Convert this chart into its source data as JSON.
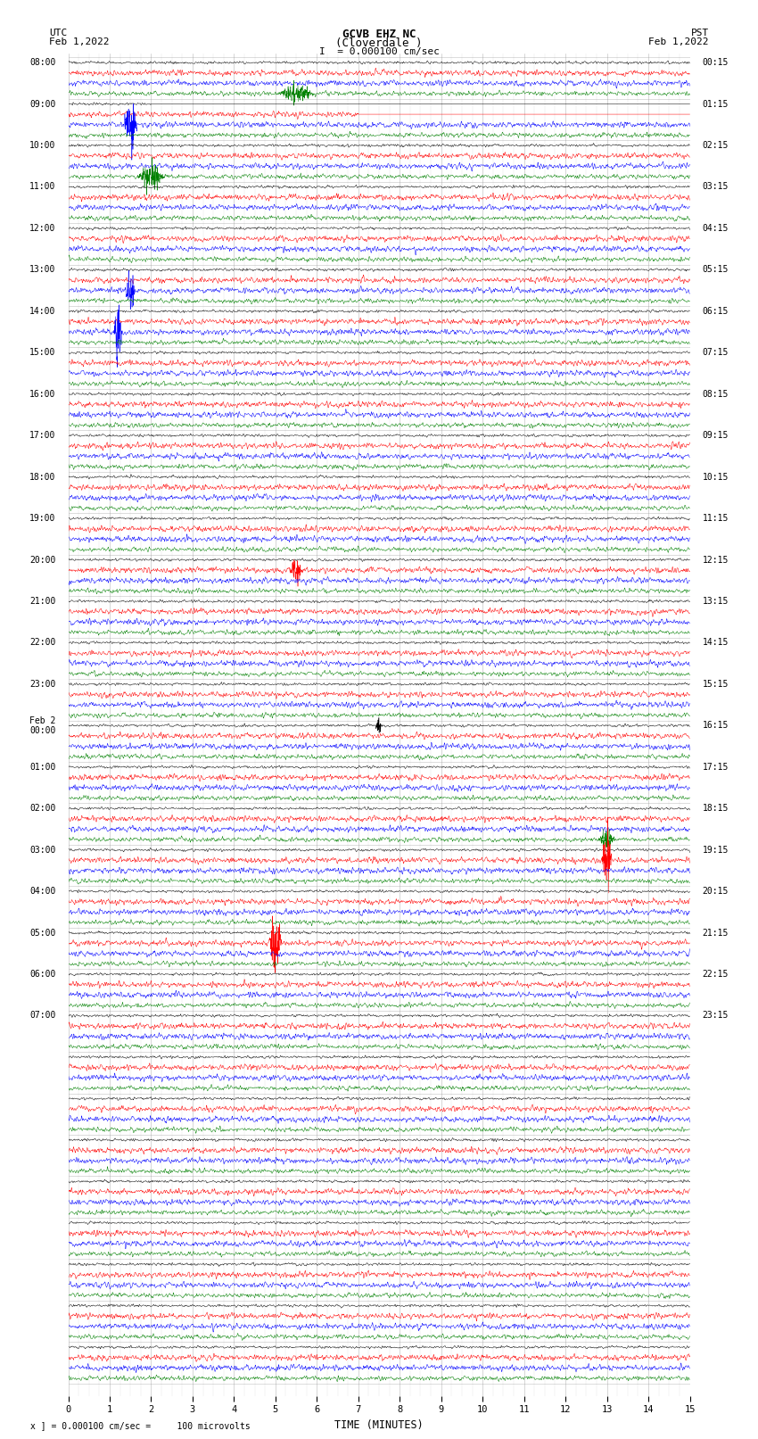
{
  "title_line1": "GCVB EHZ NC",
  "title_line2": "(Cloverdale )",
  "scale_label": "I  = 0.000100 cm/sec",
  "utc_label": "UTC",
  "utc_date": "Feb 1,2022",
  "pst_label": "PST",
  "pst_date": "Feb 1,2022",
  "xlabel": "TIME (MINUTES)",
  "footer": "x ] = 0.000100 cm/sec =     100 microvolts",
  "xlim": [
    0,
    15
  ],
  "xticks": [
    0,
    1,
    2,
    3,
    4,
    5,
    6,
    7,
    8,
    9,
    10,
    11,
    12,
    13,
    14,
    15
  ],
  "bg_color": "#ffffff",
  "trace_colors": [
    "black",
    "red",
    "blue",
    "green"
  ],
  "grid_color": "#999999",
  "n_rows": 32,
  "traces_per_row": 4,
  "left_times_major": [
    "08:00",
    "09:00",
    "10:00",
    "11:00",
    "12:00",
    "13:00",
    "14:00",
    "15:00",
    "16:00",
    "17:00",
    "18:00",
    "19:00",
    "20:00",
    "21:00",
    "22:00",
    "23:00",
    "Feb 2\n00:00",
    "01:00",
    "02:00",
    "03:00",
    "04:00",
    "05:00",
    "06:00",
    "07:00",
    "",
    "",
    "",
    "",
    "",
    "",
    "",
    "",
    ""
  ],
  "right_times_major": [
    "00:15",
    "01:15",
    "02:15",
    "03:15",
    "04:15",
    "05:15",
    "06:15",
    "07:15",
    "08:15",
    "09:15",
    "10:15",
    "11:15",
    "12:15",
    "13:15",
    "14:15",
    "15:15",
    "16:15",
    "17:15",
    "18:15",
    "19:15",
    "20:15",
    "21:15",
    "22:15",
    "23:15",
    "",
    "",
    "",
    "",
    "",
    "",
    "",
    "",
    ""
  ]
}
